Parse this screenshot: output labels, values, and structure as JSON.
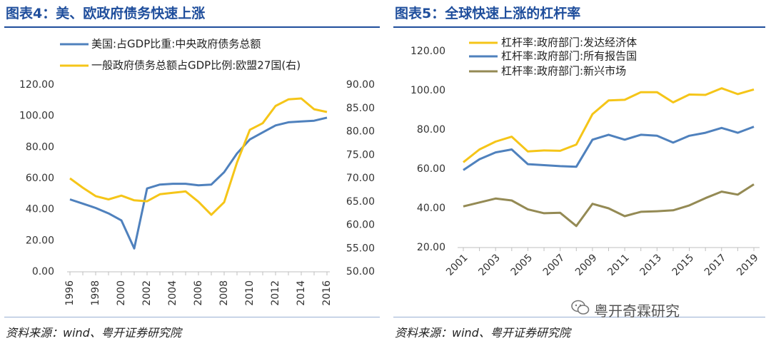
{
  "left": {
    "title": "图表4：美、欧政府债务快速上涨",
    "source": "资料来源：wind、粤开证券研究院",
    "chart_data": {
      "type": "line",
      "x": [
        1996,
        1997,
        1998,
        1999,
        2000,
        2001,
        2002,
        2003,
        2004,
        2005,
        2006,
        2007,
        2008,
        2009,
        2010,
        2011,
        2012,
        2013,
        2014,
        2015,
        2016
      ],
      "x_tick_labels": [
        "1996",
        "1998",
        "2000",
        "2002",
        "2004",
        "2006",
        "2008",
        "2010",
        "2012",
        "2014",
        "2016"
      ],
      "y_left": {
        "ylim": [
          0,
          120
        ],
        "ticks": [
          "0.00",
          "20.00",
          "40.00",
          "60.00",
          "80.00",
          "100.00",
          "120.00"
        ]
      },
      "y_right": {
        "ylim": [
          50,
          90
        ],
        "ticks": [
          "50.00",
          "55.00",
          "60.00",
          "65.00",
          "70.00",
          "75.00",
          "80.00",
          "85.00",
          "90.00"
        ]
      },
      "series": [
        {
          "name": "美国:占GDP比重:中央政府债务总额",
          "axis": "left",
          "color": "#4f81bd",
          "values": [
            46.5,
            43.8,
            41,
            37.5,
            33,
            15,
            53.5,
            56,
            56.5,
            56.5,
            55.5,
            56,
            64,
            76,
            85,
            89.5,
            94,
            96,
            96.5,
            97,
            99
          ]
        },
        {
          "name": "一般政府债务总额占GDP比例:欧盟27国(右)",
          "axis": "right",
          "color": "#f5c518",
          "values": [
            70,
            68,
            66.2,
            65.5,
            66.3,
            65.3,
            65.1,
            66.6,
            66.9,
            67.2,
            65,
            62.2,
            64.9,
            73.4,
            80.4,
            81.8,
            85.5,
            86.9,
            87.1,
            84.8,
            84.2
          ]
        }
      ]
    }
  },
  "right": {
    "title": "图表5：全球快速上涨的杠杆率",
    "source": "资料来源：wind、粤开证券研究院",
    "chart_data": {
      "type": "line",
      "x": [
        2001,
        2002,
        2003,
        2004,
        2005,
        2006,
        2007,
        2008,
        2009,
        2010,
        2011,
        2012,
        2013,
        2014,
        2015,
        2016,
        2017,
        2018,
        2019
      ],
      "x_tick_labels": [
        "2001",
        "2003",
        "2005",
        "2007",
        "2009",
        "2011",
        "2013",
        "2015",
        "2017",
        "2019"
      ],
      "y": {
        "ylim": [
          20,
          120
        ],
        "ticks": [
          "20.00",
          "40.00",
          "60.00",
          "80.00",
          "100.00",
          "120.00"
        ]
      },
      "series": [
        {
          "name": "杠杆率:政府部门:发达经济体",
          "color": "#f5c518",
          "values": [
            63.5,
            70,
            74,
            76.5,
            69,
            69.5,
            69.3,
            72.5,
            88,
            95,
            95.3,
            99.2,
            99.2,
            94,
            98,
            97.8,
            101.2,
            98.2,
            100.6
          ]
        },
        {
          "name": "杠杆率:政府部门:所有报告国",
          "color": "#4f81bd",
          "values": [
            59.5,
            65,
            68.5,
            70,
            62.5,
            62,
            61.5,
            61.2,
            75,
            77.5,
            75,
            77.5,
            77,
            73.5,
            77,
            78.5,
            81,
            78.5,
            81.6
          ]
        },
        {
          "name": "杠杆率:政府部门:新兴市场",
          "color": "#948a54",
          "values": [
            41,
            43,
            45,
            44,
            39.5,
            37.5,
            37.7,
            31,
            42.3,
            40,
            36,
            38.2,
            38.5,
            39,
            41.5,
            45.2,
            48.5,
            47,
            52.2
          ]
        }
      ]
    }
  },
  "watermark": "粤开奇霖研究"
}
